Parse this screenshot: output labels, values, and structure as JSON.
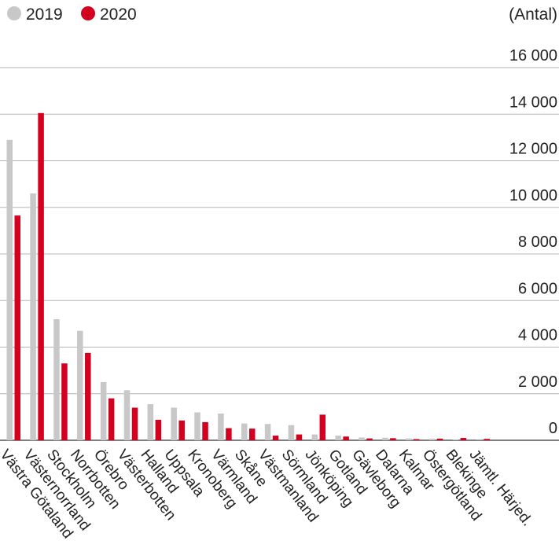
{
  "chart_data": {
    "type": "bar",
    "unit_label": "(Antal)",
    "ylim": [
      0,
      16000
    ],
    "y_ticks": [
      0,
      2000,
      4000,
      6000,
      8000,
      10000,
      12000,
      14000,
      16000
    ],
    "y_tick_labels": [
      "0",
      "2 000",
      "4 000",
      "6 000",
      "8 000",
      "10 000",
      "12 000",
      "14 000",
      "16 000"
    ],
    "grid": true,
    "legend_position": "top-left",
    "categories": [
      "Västra Götaland",
      "Västernorrland",
      "Stockholm",
      "Norrbotten",
      "Örebro",
      "Västerbotten",
      "Halland",
      "Uppsala",
      "Kronoberg",
      "Värmland",
      "Skåne",
      "Västmanland",
      "Sörmland",
      "Jönköping",
      "Gotland",
      "Gävleborg",
      "Dalarna",
      "Kalmar",
      "Östergötland",
      "Blekinge",
      "Jämtl. Härjed."
    ],
    "series": [
      {
        "name": "2019",
        "color": "#c8c8c8",
        "values": [
          12900,
          10600,
          5200,
          4700,
          2500,
          2150,
          1550,
          1400,
          1200,
          1150,
          720,
          700,
          650,
          250,
          200,
          120,
          110,
          80,
          70,
          20,
          10
        ]
      },
      {
        "name": "2020",
        "color": "#d4001f",
        "values": [
          9650,
          14050,
          3300,
          3750,
          1800,
          1400,
          880,
          850,
          780,
          520,
          500,
          200,
          250,
          1100,
          160,
          80,
          90,
          50,
          70,
          100,
          60
        ]
      }
    ]
  }
}
